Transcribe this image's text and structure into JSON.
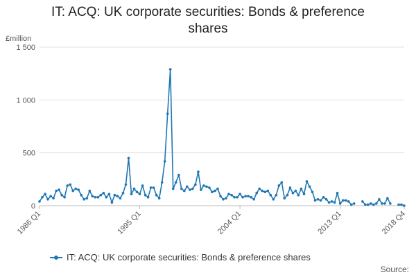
{
  "chart_data": {
    "type": "line",
    "title": "IT: ACQ: UK corporate securities: Bonds & preference shares",
    "unit_label": "£million",
    "source_label": "Source:",
    "xlabel": "",
    "ylabel": "",
    "ylim": [
      0,
      1500
    ],
    "yticks": [
      0,
      500,
      1000,
      1500
    ],
    "ytick_labels": [
      "0",
      "500",
      "1 000",
      "1 500"
    ],
    "xtick_labels": [
      "1986 Q1",
      "1995 Q1",
      "2004 Q1",
      "2013 Q1",
      "2018 Q4"
    ],
    "grid": true,
    "legend_position": "bottom",
    "series_color": "#1f77b4",
    "categories": [
      "1986 Q1",
      "1986 Q2",
      "1986 Q3",
      "1986 Q4",
      "1987 Q1",
      "1987 Q2",
      "1987 Q3",
      "1987 Q4",
      "1988 Q1",
      "1988 Q2",
      "1988 Q3",
      "1988 Q4",
      "1989 Q1",
      "1989 Q2",
      "1989 Q3",
      "1989 Q4",
      "1990 Q1",
      "1990 Q2",
      "1990 Q3",
      "1990 Q4",
      "1991 Q1",
      "1991 Q2",
      "1991 Q3",
      "1991 Q4",
      "1992 Q1",
      "1992 Q2",
      "1992 Q3",
      "1992 Q4",
      "1993 Q1",
      "1993 Q2",
      "1993 Q3",
      "1993 Q4",
      "1994 Q1",
      "1994 Q2",
      "1994 Q3",
      "1994 Q4",
      "1995 Q1",
      "1995 Q2",
      "1995 Q3",
      "1995 Q4",
      "1996 Q1",
      "1996 Q2",
      "1996 Q3",
      "1996 Q4",
      "1997 Q1",
      "1997 Q2",
      "1997 Q3",
      "1997 Q4",
      "1998 Q1",
      "1998 Q2",
      "1998 Q3",
      "1998 Q4",
      "1999 Q1",
      "1999 Q2",
      "1999 Q3",
      "1999 Q4",
      "2000 Q1",
      "2000 Q2",
      "2000 Q3",
      "2000 Q4",
      "2001 Q1",
      "2001 Q2",
      "2001 Q3",
      "2001 Q4",
      "2002 Q1",
      "2002 Q2",
      "2002 Q3",
      "2002 Q4",
      "2003 Q1",
      "2003 Q2",
      "2003 Q3",
      "2003 Q4",
      "2004 Q1",
      "2004 Q2",
      "2004 Q3",
      "2004 Q4",
      "2005 Q1",
      "2005 Q2",
      "2005 Q3",
      "2005 Q4",
      "2006 Q1",
      "2006 Q2",
      "2006 Q3",
      "2006 Q4",
      "2007 Q1",
      "2007 Q2",
      "2007 Q3",
      "2007 Q4",
      "2008 Q1",
      "2008 Q2",
      "2008 Q3",
      "2008 Q4",
      "2009 Q1",
      "2009 Q2",
      "2009 Q3",
      "2009 Q4",
      "2010 Q1",
      "2010 Q2",
      "2010 Q3",
      "2010 Q4",
      "2011 Q1",
      "2011 Q2",
      "2011 Q3",
      "2011 Q4",
      "2012 Q1",
      "2012 Q2",
      "2012 Q3",
      "2012 Q4",
      "2013 Q1",
      "2013 Q2",
      "2013 Q3",
      "2013 Q4",
      "2014 Q1",
      "2014 Q2",
      "2014 Q3",
      "2014 Q4",
      "2015 Q1",
      "2015 Q2",
      "2015 Q3",
      "2015 Q4",
      "2016 Q1",
      "2016 Q2",
      "2016 Q3",
      "2016 Q4",
      "2017 Q1",
      "2017 Q2",
      "2017 Q3",
      "2017 Q4",
      "2018 Q1",
      "2018 Q2",
      "2018 Q3",
      "2018 Q4"
    ],
    "series": [
      {
        "name": "IT: ACQ: UK corporate securities: Bonds & preference shares",
        "values": [
          40,
          80,
          110,
          60,
          90,
          70,
          140,
          150,
          100,
          80,
          190,
          200,
          140,
          160,
          150,
          100,
          60,
          70,
          140,
          90,
          80,
          80,
          100,
          120,
          80,
          110,
          30,
          100,
          90,
          70,
          120,
          200,
          450,
          110,
          160,
          130,
          110,
          190,
          100,
          80,
          170,
          170,
          100,
          70,
          220,
          420,
          870,
          1290,
          160,
          220,
          290,
          160,
          140,
          180,
          150,
          160,
          200,
          320,
          150,
          190,
          180,
          170,
          130,
          140,
          160,
          90,
          60,
          70,
          110,
          100,
          80,
          80,
          110,
          80,
          90,
          90,
          80,
          60,
          120,
          160,
          140,
          130,
          140,
          100,
          60,
          100,
          190,
          220,
          70,
          100,
          170,
          120,
          140,
          100,
          160,
          110,
          230,
          180,
          130,
          50,
          60,
          50,
          80,
          60,
          30,
          40,
          30,
          120,
          20,
          50,
          50,
          40,
          10,
          20,
          null,
          null,
          40,
          10,
          10,
          20,
          10,
          20,
          60,
          20,
          20,
          70,
          20,
          null,
          null,
          10,
          10,
          0
        ]
      }
    ]
  }
}
